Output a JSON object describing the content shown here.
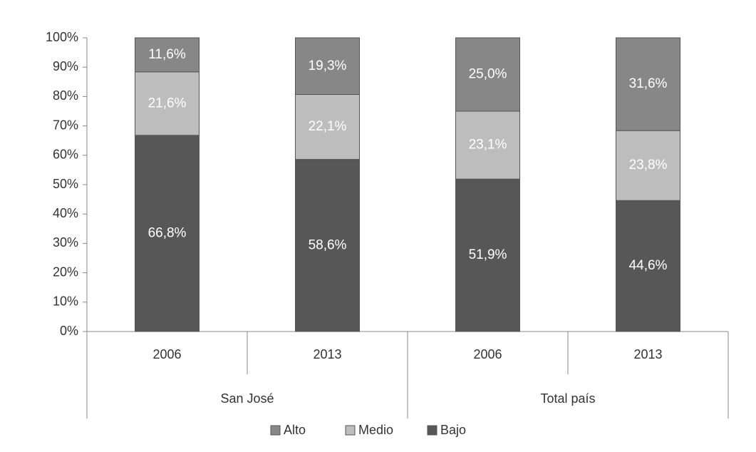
{
  "chart_data": {
    "type": "stacked_bar",
    "categories": [
      "2006",
      "2013",
      "2006",
      "2013"
    ],
    "groups": [
      "San José",
      "Total país"
    ],
    "series": [
      {
        "name": "Bajo",
        "color": "#575757",
        "values": [
          66.8,
          58.6,
          51.9,
          44.6
        ],
        "value_labels": [
          "66,8%",
          "58,6%",
          "51,9%",
          "44,6%"
        ]
      },
      {
        "name": "Medio",
        "color": "#bdbdbd",
        "values": [
          21.6,
          22.1,
          23.1,
          23.8
        ],
        "value_labels": [
          "21,6%",
          "22,1%",
          "23,1%",
          "23,8%"
        ]
      },
      {
        "name": "Alto",
        "color": "#878787",
        "values": [
          11.6,
          19.3,
          25.0,
          31.6
        ],
        "value_labels": [
          "11,6%",
          "19,3%",
          "25,0%",
          "31,6%"
        ]
      }
    ],
    "ylim": [
      0,
      100
    ],
    "yticks": [
      {
        "value": 0,
        "label": "0%"
      },
      {
        "value": 10,
        "label": "10%"
      },
      {
        "value": 20,
        "label": "20%"
      },
      {
        "value": 30,
        "label": "30%"
      },
      {
        "value": 40,
        "label": "40%"
      },
      {
        "value": 50,
        "label": "50%"
      },
      {
        "value": 60,
        "label": "60%"
      },
      {
        "value": 70,
        "label": "70%"
      },
      {
        "value": 80,
        "label": "80%"
      },
      {
        "value": 90,
        "label": "90%"
      },
      {
        "value": 100,
        "label": "100%"
      }
    ],
    "legend": "bottom"
  }
}
